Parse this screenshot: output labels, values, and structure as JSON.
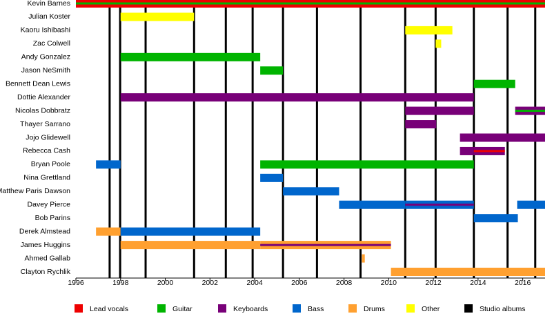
{
  "chart_data": {
    "type": "timeline",
    "xlim": [
      1996,
      2017
    ],
    "xticks": [
      1996,
      1998,
      2000,
      2002,
      2004,
      2006,
      2008,
      2010,
      2012,
      2014,
      2016
    ],
    "legend": [
      {
        "name": "Lead vocals",
        "color": "#ee0000"
      },
      {
        "name": "Guitar",
        "color": "#00b400"
      },
      {
        "name": "Keyboards",
        "color": "#780078"
      },
      {
        "name": "Bass",
        "color": "#0066cc"
      },
      {
        "name": "Drums",
        "color": "#ffa030"
      },
      {
        "name": "Other",
        "color": "#ffff00"
      },
      {
        "name": "Studio albums",
        "color": "#000000"
      }
    ],
    "albums": [
      1997.51,
      1997.98,
      1999.12,
      2001.29,
      2002.71,
      2003.91,
      2005.27,
      2006.79,
      2008.74,
      2010.74,
      2012.1,
      2013.81,
      2015.32,
      2016.56
    ],
    "members": [
      {
        "name": "Kevin Barnes",
        "bars": [
          {
            "start": 1996,
            "end": 2017,
            "role": 0,
            "stripe": 1
          }
        ]
      },
      {
        "name": "Julian Koster",
        "bars": [
          {
            "start": 1998,
            "end": 2001.29,
            "role": 5
          }
        ]
      },
      {
        "name": "Kaoru Ishibashi",
        "bars": [
          {
            "start": 2010.74,
            "end": 2012.85,
            "role": 5
          }
        ]
      },
      {
        "name": "Zac Colwell",
        "bars": [
          {
            "start": 2012.1,
            "end": 2012.35,
            "role": 5
          }
        ]
      },
      {
        "name": "Andy Gonzalez",
        "bars": [
          {
            "start": 1998,
            "end": 2004.25,
            "role": 1
          }
        ]
      },
      {
        "name": "Jason NeSmith",
        "bars": [
          {
            "start": 2004.25,
            "end": 2005.27,
            "role": 1
          }
        ]
      },
      {
        "name": "Bennett Dean Lewis",
        "bars": [
          {
            "start": 2013.81,
            "end": 2015.66,
            "role": 1
          }
        ]
      },
      {
        "name": "Dottie Alexander",
        "bars": [
          {
            "start": 1998,
            "end": 2013.81,
            "role": 2
          }
        ]
      },
      {
        "name": "Nicolas Dobbratz",
        "bars": [
          {
            "start": 2010.74,
            "end": 2013.81,
            "role": 2
          },
          {
            "start": 2015.66,
            "end": 2017,
            "role": 2,
            "stripe": 1
          }
        ]
      },
      {
        "name": "Thayer Sarrano",
        "bars": [
          {
            "start": 2010.74,
            "end": 2012.13,
            "role": 2
          }
        ]
      },
      {
        "name": "Jojo Glidewell",
        "bars": [
          {
            "start": 2013.19,
            "end": 2017,
            "role": 2
          }
        ]
      },
      {
        "name": "Rebecca Cash",
        "bars": [
          {
            "start": 2013.19,
            "end": 2013.81,
            "role": 2
          },
          {
            "start": 2013.81,
            "end": 2015.2,
            "role": 2,
            "stripe": 0
          }
        ]
      },
      {
        "name": "Bryan Poole",
        "bars": [
          {
            "start": 1996.9,
            "end": 1998,
            "role": 3
          },
          {
            "start": 2004.25,
            "end": 2013.81,
            "role": 1
          }
        ]
      },
      {
        "name": "Nina Grettland",
        "bars": [
          {
            "start": 2004.25,
            "end": 2005.27,
            "role": 3
          }
        ]
      },
      {
        "name": "Matthew Paris Dawson",
        "bars": [
          {
            "start": 2005.27,
            "end": 2007.78,
            "role": 3
          }
        ]
      },
      {
        "name": "Davey Pierce",
        "bars": [
          {
            "start": 2007.78,
            "end": 2010.74,
            "role": 3
          },
          {
            "start": 2010.74,
            "end": 2013.81,
            "role": 3,
            "stripe": 2
          },
          {
            "start": 2015.75,
            "end": 2017,
            "role": 3
          }
        ]
      },
      {
        "name": "Bob Parins",
        "bars": [
          {
            "start": 2013.81,
            "end": 2015.78,
            "role": 3
          }
        ]
      },
      {
        "name": "Derek Almstead",
        "bars": [
          {
            "start": 1996.9,
            "end": 1998,
            "role": 4
          },
          {
            "start": 1998,
            "end": 2004.25,
            "role": 3
          }
        ]
      },
      {
        "name": "James Huggins",
        "bars": [
          {
            "start": 1998,
            "end": 2004.25,
            "role": 4
          },
          {
            "start": 2004.25,
            "end": 2010.1,
            "role": 4,
            "stripe": 2
          }
        ]
      },
      {
        "name": "Ahmed Gallab",
        "bars": [
          {
            "start": 2008.8,
            "end": 2008.93,
            "role": 4
          }
        ]
      },
      {
        "name": "Clayton Rychlik",
        "bars": [
          {
            "start": 2010.1,
            "end": 2017,
            "role": 4
          }
        ]
      }
    ]
  }
}
